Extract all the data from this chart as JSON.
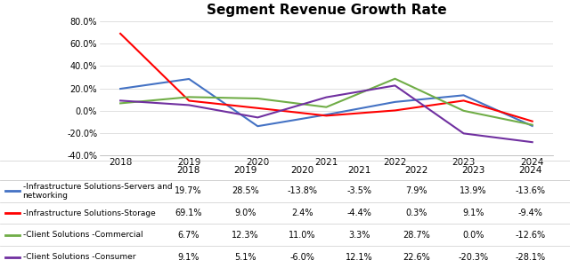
{
  "title": "Segment Revenue Growth Rate",
  "years": [
    2018,
    2019,
    2020,
    2021,
    2022,
    2023,
    2024
  ],
  "series": [
    {
      "label": "-Infrastructure Solutions-Servers and\nnetworking",
      "color": "#4472C4",
      "values": [
        19.7,
        28.5,
        -13.8,
        -3.5,
        7.9,
        13.9,
        -13.6
      ]
    },
    {
      "label": "-Infrastructure Solutions-Storage",
      "color": "#FF0000",
      "values": [
        69.1,
        9.0,
        2.4,
        -4.4,
        0.3,
        9.1,
        -9.4
      ]
    },
    {
      "label": "-Client Solutions -Commercial",
      "color": "#70AD47",
      "values": [
        6.7,
        12.3,
        11.0,
        3.3,
        28.7,
        0.0,
        -12.6
      ]
    },
    {
      "label": "-Client Solutions -Consumer",
      "color": "#7030A0",
      "values": [
        9.1,
        5.1,
        -6.0,
        12.1,
        22.6,
        -20.3,
        -28.1
      ]
    }
  ],
  "table_rows": [
    [
      "-Infrastructure Solutions-Servers and\nnetworking",
      "19.7%",
      "28.5%",
      "-13.8%",
      "-3.5%",
      "7.9%",
      "13.9%",
      "-13.6%"
    ],
    [
      "-Infrastructure Solutions-Storage",
      "69.1%",
      "9.0%",
      "2.4%",
      "-4.4%",
      "0.3%",
      "9.1%",
      "-9.4%"
    ],
    [
      "-Client Solutions -Commercial",
      "6.7%",
      "12.3%",
      "11.0%",
      "3.3%",
      "28.7%",
      "0.0%",
      "-12.6%"
    ],
    [
      "-Client Solutions -Consumer",
      "9.1%",
      "5.1%",
      "-6.0%",
      "12.1%",
      "22.6%",
      "-20.3%",
      "-28.1%"
    ]
  ],
  "row_colors": [
    "#4472C4",
    "#FF0000",
    "#70AD47",
    "#7030A0"
  ],
  "ylim": [
    -40.0,
    80.0
  ],
  "yticks": [
    -40.0,
    -20.0,
    0.0,
    20.0,
    40.0,
    60.0,
    80.0
  ],
  "background_color": "#FFFFFF",
  "grid_color": "#D3D3D3",
  "col_widths": [
    0.28,
    0.1,
    0.1,
    0.1,
    0.1,
    0.1,
    0.1,
    0.1
  ]
}
